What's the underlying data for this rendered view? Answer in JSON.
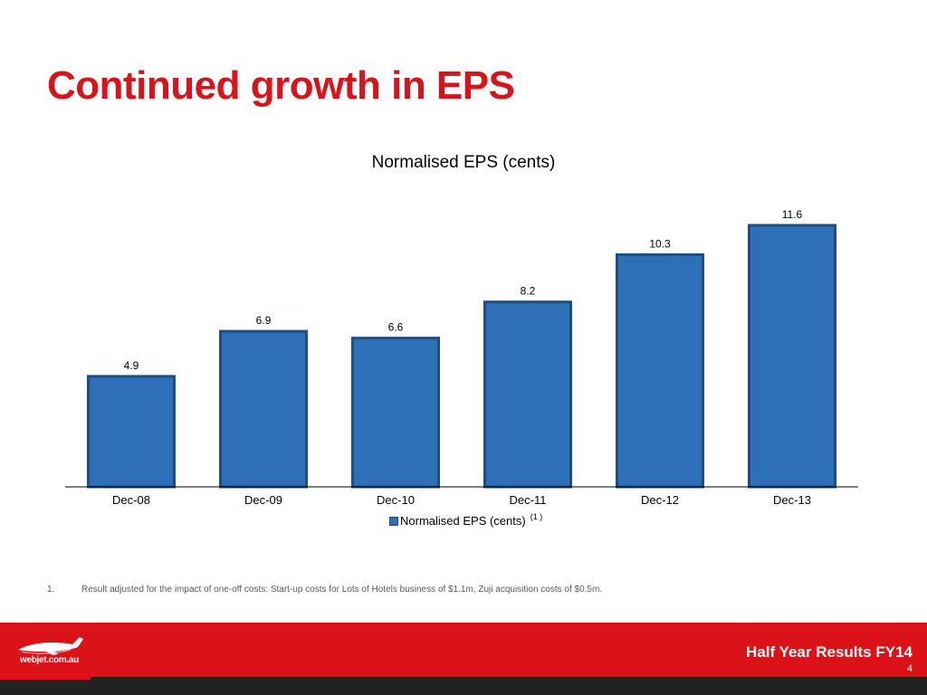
{
  "slide": {
    "title": "Continued growth in EPS",
    "footnote_number": "1.",
    "footnote_text": "Result adjusted for the impact of one-off costs: Start-up costs for Lots of Hotels business of $1.1m, Zuji acquisition costs of $0.5m."
  },
  "footer": {
    "title": "Half Year Results FY14",
    "page_number": "4",
    "logo_text": "webjet.com.au",
    "bar_color": "#dc1219",
    "dark_color": "#222222"
  },
  "chart_data": {
    "type": "bar",
    "title": "Normalised EPS (cents)",
    "categories": [
      "Dec-08",
      "Dec-09",
      "Dec-10",
      "Dec-11",
      "Dec-12",
      "Dec-13"
    ],
    "series": [
      {
        "name": "Normalised EPS (cents)",
        "values": [
          4.9,
          6.9,
          6.6,
          8.2,
          10.3,
          11.6
        ],
        "data_labels": [
          "4.9",
          "6.9",
          "6.6",
          "8.2",
          "10.3",
          "11.6"
        ],
        "color": "#2e70b7"
      }
    ],
    "legend_superscript": "(1 )",
    "ylim": [
      0,
      11.6
    ],
    "grid": false,
    "legend_position": "bottom"
  }
}
